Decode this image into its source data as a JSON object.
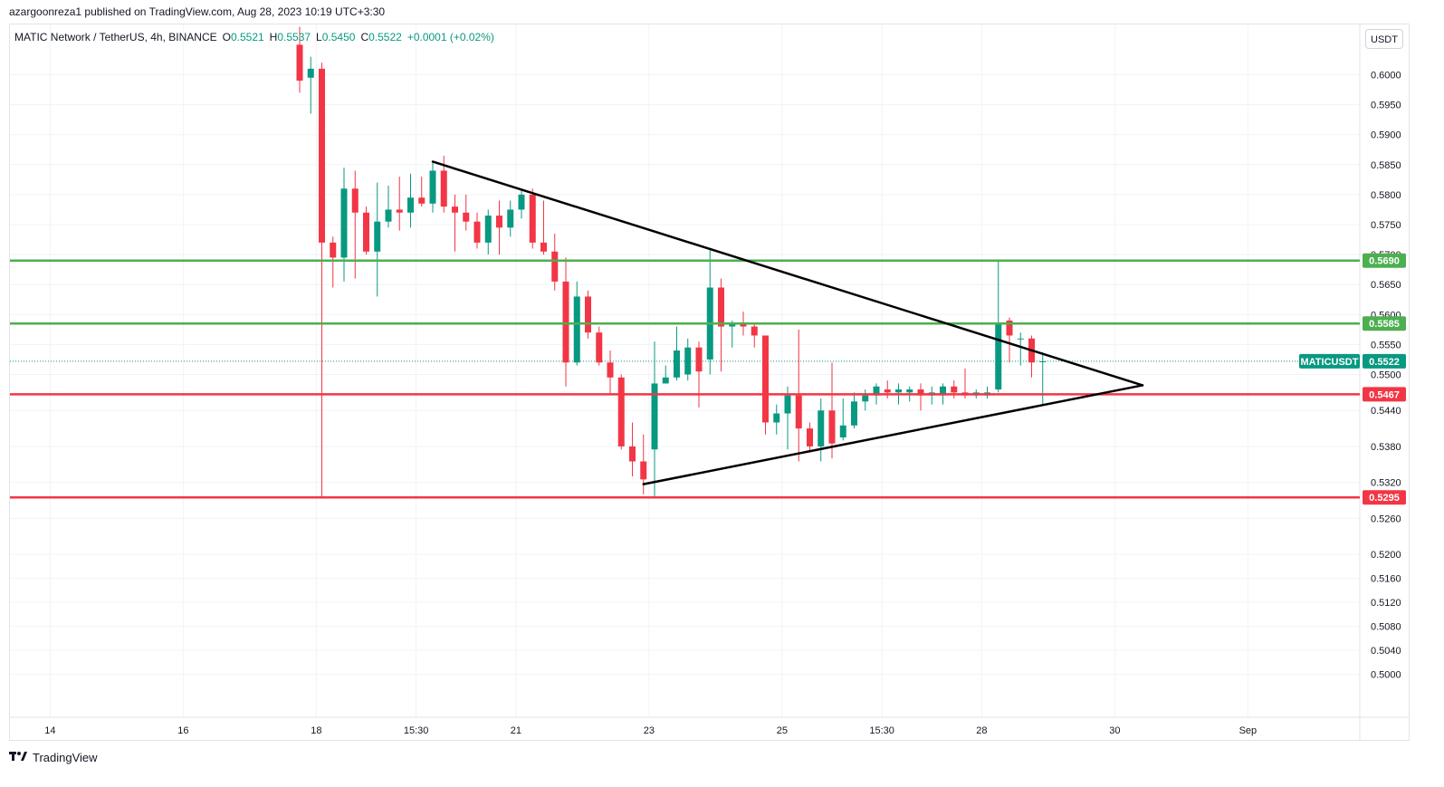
{
  "header": {
    "publisher": "azargoonreza1",
    "text": "azargoonreza1 published on TradingView.com, Aug 28, 2023 10:19 UTC+3:30"
  },
  "legend": {
    "symbol": "MATIC Network / TetherUS, 4h, BINANCE",
    "open_label": "O",
    "open": "0.5521",
    "high_label": "H",
    "high": "0.5537",
    "low_label": "L",
    "low": "0.5450",
    "close_label": "C",
    "close": "0.5522",
    "change": "+0.0001 (+0.02%)"
  },
  "currency_button": "USDT",
  "footer": {
    "brand": "TradingView",
    "logo_icon": "tradingview-logo-icon"
  },
  "colors": {
    "up": "#089981",
    "down": "#f23645",
    "green_level": "#4caf50",
    "red_level": "#f23645",
    "trend_line": "#000000",
    "grid": "#f0f3fa"
  },
  "chart_data": {
    "type": "candlestick",
    "title": "MATIC Network / TetherUS, 4h, BINANCE",
    "ylim": [
      0.4975,
      0.606
    ],
    "y_ticks": [
      0.6,
      0.595,
      0.59,
      0.585,
      0.58,
      0.575,
      0.57,
      0.565,
      0.56,
      0.555,
      0.55,
      0.544,
      0.538,
      0.532,
      0.526,
      0.52,
      0.516,
      0.512,
      0.508,
      0.504,
      0.5
    ],
    "y_tick_labels": [
      "0.6000",
      "0.5950",
      "0.5900",
      "0.5850",
      "0.5800",
      "0.5750",
      "0.5700",
      "0.5650",
      "0.5600",
      "0.5550",
      "0.5500",
      "0.5440",
      "0.5380",
      "0.5320",
      "0.5260",
      "0.5200",
      "0.5160",
      "0.5120",
      "0.5080",
      "0.5040",
      "0.5000"
    ],
    "x_ticks": [
      {
        "label": "14",
        "bar": -46.5
      },
      {
        "label": "16",
        "bar": -34.5
      },
      {
        "label": "18",
        "bar": -22.5
      },
      {
        "label": "15:30",
        "bar": -13.5
      },
      {
        "label": "21",
        "bar": -4.5
      },
      {
        "label": "23",
        "bar": 7.5
      },
      {
        "label": "25",
        "bar": 19.5
      },
      {
        "label": "15:30",
        "bar": 28.5
      },
      {
        "label": "28",
        "bar": 37.5
      },
      {
        "label": "30",
        "bar": 49.5
      },
      {
        "label": "Sep",
        "bar": 61.5
      }
    ],
    "candles": [
      {
        "bar": -24,
        "o": 0.605,
        "h": 0.608,
        "l": 0.597,
        "c": 0.599
      },
      {
        "bar": -23,
        "o": 0.5995,
        "h": 0.603,
        "l": 0.5935,
        "c": 0.601
      },
      {
        "bar": -22,
        "o": 0.601,
        "h": 0.602,
        "l": 0.5295,
        "c": 0.572
      },
      {
        "bar": -21,
        "o": 0.572,
        "h": 0.573,
        "l": 0.5645,
        "c": 0.5695
      },
      {
        "bar": -20,
        "o": 0.5695,
        "h": 0.5845,
        "l": 0.5655,
        "c": 0.581
      },
      {
        "bar": -19,
        "o": 0.581,
        "h": 0.584,
        "l": 0.566,
        "c": 0.577
      },
      {
        "bar": -18,
        "o": 0.577,
        "h": 0.578,
        "l": 0.57,
        "c": 0.5705
      },
      {
        "bar": -17,
        "o": 0.5705,
        "h": 0.582,
        "l": 0.563,
        "c": 0.5755
      },
      {
        "bar": -16,
        "o": 0.5755,
        "h": 0.5815,
        "l": 0.5745,
        "c": 0.5775
      },
      {
        "bar": -15,
        "o": 0.5775,
        "h": 0.583,
        "l": 0.574,
        "c": 0.577
      },
      {
        "bar": -14,
        "o": 0.577,
        "h": 0.5835,
        "l": 0.5745,
        "c": 0.5795
      },
      {
        "bar": -13,
        "o": 0.5795,
        "h": 0.583,
        "l": 0.578,
        "c": 0.5785
      },
      {
        "bar": -12,
        "o": 0.5785,
        "h": 0.5855,
        "l": 0.577,
        "c": 0.584
      },
      {
        "bar": -11,
        "o": 0.584,
        "h": 0.5865,
        "l": 0.577,
        "c": 0.578
      },
      {
        "bar": -10,
        "o": 0.578,
        "h": 0.58,
        "l": 0.5705,
        "c": 0.577
      },
      {
        "bar": -9,
        "o": 0.577,
        "h": 0.58,
        "l": 0.574,
        "c": 0.5755
      },
      {
        "bar": -8,
        "o": 0.5755,
        "h": 0.577,
        "l": 0.571,
        "c": 0.572
      },
      {
        "bar": -7,
        "o": 0.572,
        "h": 0.5775,
        "l": 0.57,
        "c": 0.5765
      },
      {
        "bar": -6,
        "o": 0.5765,
        "h": 0.579,
        "l": 0.57,
        "c": 0.5745
      },
      {
        "bar": -5,
        "o": 0.5745,
        "h": 0.579,
        "l": 0.573,
        "c": 0.5775
      },
      {
        "bar": -4,
        "o": 0.5775,
        "h": 0.581,
        "l": 0.576,
        "c": 0.58
      },
      {
        "bar": -3,
        "o": 0.58,
        "h": 0.581,
        "l": 0.571,
        "c": 0.572
      },
      {
        "bar": -2,
        "o": 0.572,
        "h": 0.579,
        "l": 0.57,
        "c": 0.5705
      },
      {
        "bar": -1,
        "o": 0.5705,
        "h": 0.5735,
        "l": 0.564,
        "c": 0.5655
      },
      {
        "bar": 0,
        "o": 0.5655,
        "h": 0.5695,
        "l": 0.548,
        "c": 0.552
      },
      {
        "bar": 1,
        "o": 0.552,
        "h": 0.5655,
        "l": 0.5515,
        "c": 0.563
      },
      {
        "bar": 2,
        "o": 0.563,
        "h": 0.564,
        "l": 0.556,
        "c": 0.557
      },
      {
        "bar": 3,
        "o": 0.557,
        "h": 0.558,
        "l": 0.5515,
        "c": 0.552
      },
      {
        "bar": 4,
        "o": 0.552,
        "h": 0.554,
        "l": 0.5465,
        "c": 0.5495
      },
      {
        "bar": 5,
        "o": 0.5495,
        "h": 0.55,
        "l": 0.5375,
        "c": 0.538
      },
      {
        "bar": 6,
        "o": 0.538,
        "h": 0.542,
        "l": 0.533,
        "c": 0.5355
      },
      {
        "bar": 7,
        "o": 0.5355,
        "h": 0.54,
        "l": 0.53,
        "c": 0.5325
      },
      {
        "bar": 8,
        "o": 0.5375,
        "h": 0.5555,
        "l": 0.5295,
        "c": 0.5485
      },
      {
        "bar": 9,
        "o": 0.5485,
        "h": 0.5515,
        "l": 0.5485,
        "c": 0.5495
      },
      {
        "bar": 10,
        "o": 0.5495,
        "h": 0.558,
        "l": 0.549,
        "c": 0.554
      },
      {
        "bar": 11,
        "o": 0.55,
        "h": 0.556,
        "l": 0.549,
        "c": 0.5545
      },
      {
        "bar": 12,
        "o": 0.5545,
        "h": 0.5555,
        "l": 0.5445,
        "c": 0.5505
      },
      {
        "bar": 13,
        "o": 0.5525,
        "h": 0.571,
        "l": 0.55,
        "c": 0.5645
      },
      {
        "bar": 14,
        "o": 0.5645,
        "h": 0.566,
        "l": 0.5505,
        "c": 0.558
      },
      {
        "bar": 15,
        "o": 0.558,
        "h": 0.559,
        "l": 0.5545,
        "c": 0.5585
      },
      {
        "bar": 16,
        "o": 0.5585,
        "h": 0.5605,
        "l": 0.5565,
        "c": 0.558
      },
      {
        "bar": 17,
        "o": 0.558,
        "h": 0.5585,
        "l": 0.5545,
        "c": 0.5565
      },
      {
        "bar": 18,
        "o": 0.5565,
        "h": 0.5565,
        "l": 0.54,
        "c": 0.542
      },
      {
        "bar": 19,
        "o": 0.542,
        "h": 0.545,
        "l": 0.54,
        "c": 0.5435
      },
      {
        "bar": 20,
        "o": 0.5435,
        "h": 0.548,
        "l": 0.5375,
        "c": 0.5465
      },
      {
        "bar": 21,
        "o": 0.5465,
        "h": 0.5575,
        "l": 0.5355,
        "c": 0.541
      },
      {
        "bar": 22,
        "o": 0.541,
        "h": 0.542,
        "l": 0.537,
        "c": 0.538
      },
      {
        "bar": 23,
        "o": 0.538,
        "h": 0.546,
        "l": 0.5355,
        "c": 0.544
      },
      {
        "bar": 24,
        "o": 0.544,
        "h": 0.552,
        "l": 0.536,
        "c": 0.5385
      },
      {
        "bar": 25,
        "o": 0.5395,
        "h": 0.546,
        "l": 0.539,
        "c": 0.5415
      },
      {
        "bar": 26,
        "o": 0.5415,
        "h": 0.547,
        "l": 0.541,
        "c": 0.5455
      },
      {
        "bar": 27,
        "o": 0.5455,
        "h": 0.5475,
        "l": 0.544,
        "c": 0.5465
      },
      {
        "bar": 28,
        "o": 0.5465,
        "h": 0.5485,
        "l": 0.545,
        "c": 0.548
      },
      {
        "bar": 29,
        "o": 0.5475,
        "h": 0.549,
        "l": 0.546,
        "c": 0.547
      },
      {
        "bar": 30,
        "o": 0.547,
        "h": 0.5485,
        "l": 0.545,
        "c": 0.5475
      },
      {
        "bar": 31,
        "o": 0.547,
        "h": 0.548,
        "l": 0.5455,
        "c": 0.5475
      },
      {
        "bar": 32,
        "o": 0.5475,
        "h": 0.5485,
        "l": 0.544,
        "c": 0.5465
      },
      {
        "bar": 33,
        "o": 0.5465,
        "h": 0.548,
        "l": 0.545,
        "c": 0.547
      },
      {
        "bar": 34,
        "o": 0.5465,
        "h": 0.5485,
        "l": 0.545,
        "c": 0.548
      },
      {
        "bar": 35,
        "o": 0.548,
        "h": 0.549,
        "l": 0.546,
        "c": 0.547
      },
      {
        "bar": 36,
        "o": 0.547,
        "h": 0.551,
        "l": 0.546,
        "c": 0.5465
      },
      {
        "bar": 37,
        "o": 0.5465,
        "h": 0.5475,
        "l": 0.546,
        "c": 0.547
      },
      {
        "bar": 38,
        "o": 0.5465,
        "h": 0.548,
        "l": 0.546,
        "c": 0.547
      },
      {
        "bar": 39,
        "o": 0.5475,
        "h": 0.569,
        "l": 0.547,
        "c": 0.5585
      },
      {
        "bar": 40,
        "o": 0.559,
        "h": 0.5595,
        "l": 0.552,
        "c": 0.5565
      },
      {
        "bar": 41,
        "o": 0.556,
        "h": 0.557,
        "l": 0.5515,
        "c": 0.556
      },
      {
        "bar": 42,
        "o": 0.556,
        "h": 0.5565,
        "l": 0.5495,
        "c": 0.552
      },
      {
        "bar": 43,
        "o": 0.5521,
        "h": 0.5537,
        "l": 0.545,
        "c": 0.5522
      }
    ],
    "levels": [
      {
        "name": "0.5690",
        "value": 0.569,
        "color": "#4caf50"
      },
      {
        "name": "0.5585",
        "value": 0.5585,
        "color": "#4caf50"
      },
      {
        "name": "0.5467",
        "value": 0.5467,
        "color": "#f23645"
      },
      {
        "name": "0.5295",
        "value": 0.5295,
        "color": "#f23645"
      }
    ],
    "current_price": {
      "symbol": "MATICUSDT",
      "value": 0.5522,
      "label": "0.5522"
    },
    "trendlines": [
      {
        "x1": -12,
        "y1": 0.5855,
        "x2": 52,
        "y2": 0.5482
      },
      {
        "x1": 7,
        "y1": 0.5317,
        "x2": 52,
        "y2": 0.5482
      }
    ]
  }
}
